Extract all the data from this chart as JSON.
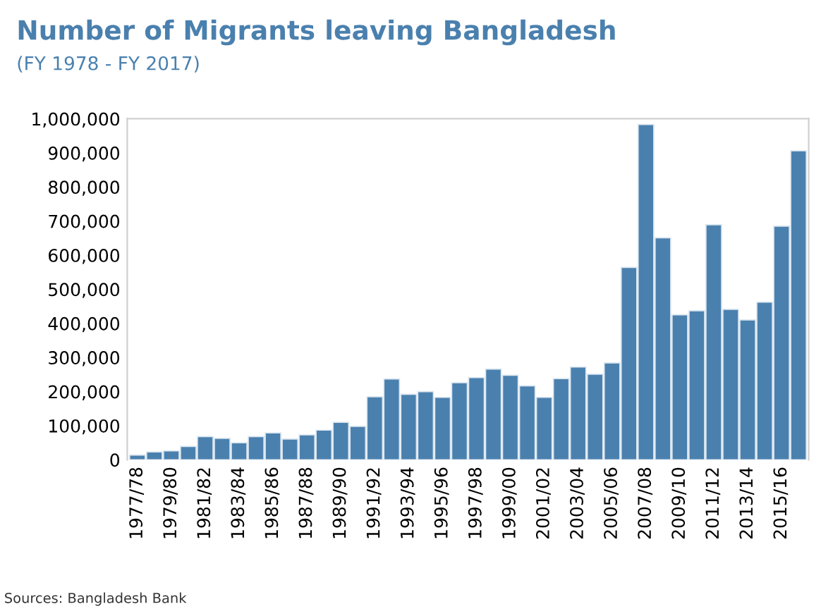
{
  "chart_data": {
    "type": "bar",
    "title": "Number of Migrants leaving Bangladesh",
    "subtitle": "(FY 1978 - FY 2017)",
    "categories": [
      "1977/78",
      null,
      "1979/80",
      null,
      "1981/82",
      null,
      "1983/84",
      null,
      "1985/86",
      null,
      "1987/88",
      null,
      "1989/90",
      null,
      "1991/92",
      null,
      "1993/94",
      null,
      "1995/96",
      null,
      "1997/98",
      null,
      "1999/00",
      null,
      "2001/02",
      null,
      "2003/04",
      null,
      "2005/06",
      null,
      "2007/08",
      null,
      "2009/10",
      null,
      "2011/12",
      null,
      "2013/14",
      null,
      "2015/16",
      null
    ],
    "values": [
      14000,
      23000,
      26000,
      39000,
      68000,
      63000,
      50000,
      68000,
      79000,
      61000,
      73000,
      87000,
      110000,
      98000,
      185000,
      237000,
      192000,
      200000,
      183000,
      226000,
      241000,
      266000,
      248000,
      217000,
      183000,
      238000,
      272000,
      251000,
      284000,
      564000,
      983000,
      651000,
      425000,
      437000,
      689000,
      441000,
      410000,
      462000,
      685000,
      906000
    ],
    "color": "#4a80ae",
    "ylim": [
      0,
      1000000
    ],
    "yticks": [
      {
        "value": 0,
        "label": "0"
      },
      {
        "value": 100000,
        "label": "100,000"
      },
      {
        "value": 200000,
        "label": "200,000"
      },
      {
        "value": 300000,
        "label": "300,000"
      },
      {
        "value": 400000,
        "label": "400,000"
      },
      {
        "value": 500000,
        "label": "500,000"
      },
      {
        "value": 600000,
        "label": "600,000"
      },
      {
        "value": 700000,
        "label": "700,000"
      },
      {
        "value": 800000,
        "label": "800,000"
      },
      {
        "value": 900000,
        "label": "900,000"
      },
      {
        "value": 1000000,
        "label": "1,000,000"
      }
    ],
    "grid": false,
    "legend": false,
    "annotations": [
      "Sources: Bangladesh Bank"
    ]
  }
}
